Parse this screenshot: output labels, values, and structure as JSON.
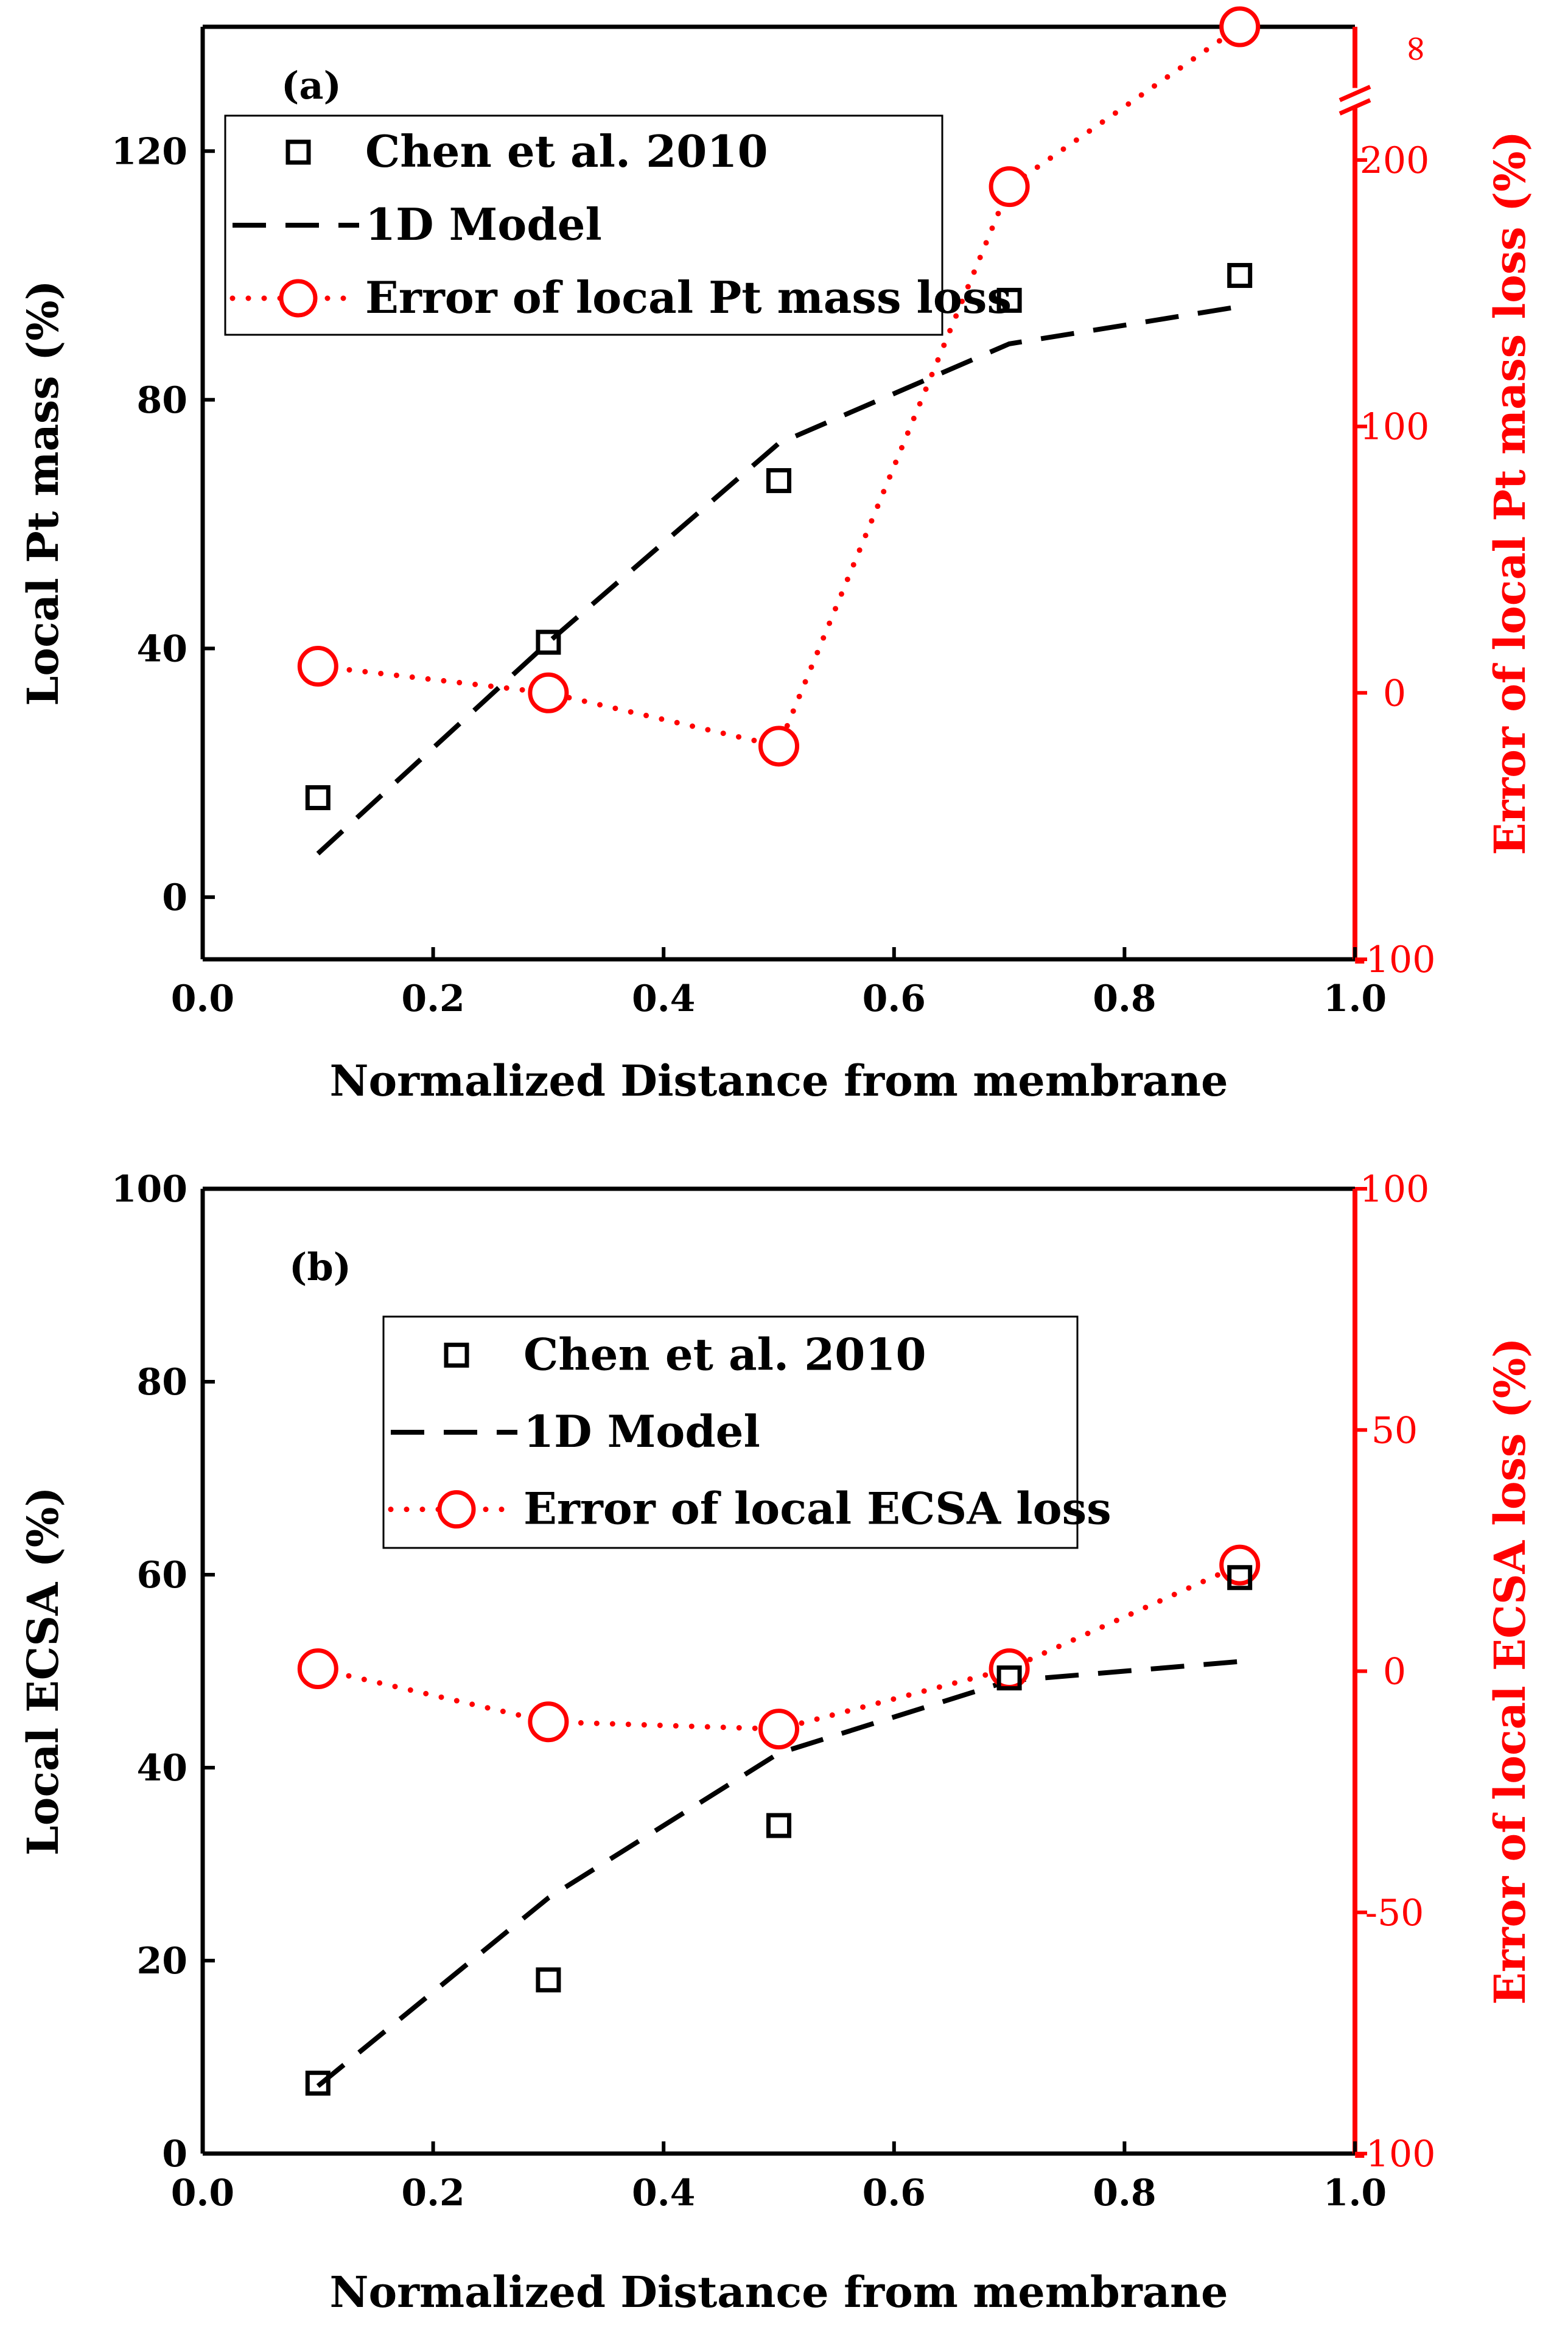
{
  "chart_data": [
    {
      "type": "line",
      "panel_label": "(a)",
      "xlabel": "Normalized Distance from membrane",
      "ylabel": "Local Pt mass (%)",
      "y2label": "Error of local Pt mass loss (%)",
      "xlim": [
        0.0,
        1.0
      ],
      "ylim": [
        -10,
        140
      ],
      "y2lim": [
        -100,
        250
      ],
      "xticks": [
        "0.0",
        "0.2",
        "0.4",
        "0.6",
        "0.8",
        "1.0"
      ],
      "yticks": [
        "0",
        "40",
        "80",
        "120"
      ],
      "y2ticks": [
        "-100",
        "0",
        "100",
        "200"
      ],
      "y2_break_label": "∞",
      "legend_position": "top-left",
      "series": [
        {
          "name": "Chen et al. 2010",
          "axis": "left",
          "marker": "square",
          "color": "#000000",
          "x": [
            0.1,
            0.3,
            0.5,
            0.7,
            0.9
          ],
          "values": [
            16,
            41,
            67,
            96,
            100
          ]
        },
        {
          "name": "1D Model",
          "axis": "left",
          "style": "dashed",
          "color": "#000000",
          "x": [
            0.1,
            0.3,
            0.5,
            0.7,
            0.9
          ],
          "values": [
            7,
            41,
            73,
            89,
            95
          ]
        },
        {
          "name": "Error of local Pt mass loss",
          "axis": "right",
          "marker": "circle",
          "style": "dotted",
          "color": "#ff0000",
          "x": [
            0.1,
            0.3,
            0.5,
            0.7,
            0.9
          ],
          "values": [
            10,
            0,
            -20,
            190,
            250
          ]
        }
      ]
    },
    {
      "type": "line",
      "panel_label": "(b)",
      "xlabel": "Normalized Distance from membrane",
      "ylabel": "Local ECSA (%)",
      "y2label": "Error of local ECSA loss (%)",
      "xlim": [
        0.0,
        1.0
      ],
      "ylim": [
        0,
        100
      ],
      "y2lim": [
        -100,
        100
      ],
      "xticks": [
        "0.0",
        "0.2",
        "0.4",
        "0.6",
        "0.8",
        "1.0"
      ],
      "yticks": [
        "0",
        "20",
        "40",
        "60",
        "80",
        "100"
      ],
      "y2ticks": [
        "-100",
        "-50",
        "0",
        "50",
        "100"
      ],
      "legend_position": "upper-center",
      "series": [
        {
          "name": "Chen et al. 2010",
          "axis": "left",
          "marker": "square",
          "color": "#000000",
          "x": [
            0.1,
            0.3,
            0.5,
            0.7,
            0.9
          ],
          "values": [
            7.3,
            18,
            34,
            49.3,
            59.7
          ]
        },
        {
          "name": "1D Model",
          "axis": "left",
          "style": "dashed",
          "color": "#000000",
          "x": [
            0.1,
            0.3,
            0.5,
            0.7,
            0.9
          ],
          "values": [
            7,
            26.5,
            41.5,
            49,
            51
          ]
        },
        {
          "name": "Error of local ECSA loss",
          "axis": "right",
          "marker": "circle",
          "style": "dotted",
          "color": "#ff0000",
          "x": [
            0.1,
            0.3,
            0.5,
            0.7,
            0.9
          ],
          "values": [
            0.5,
            -10.5,
            -12,
            0.5,
            22
          ]
        }
      ]
    }
  ]
}
